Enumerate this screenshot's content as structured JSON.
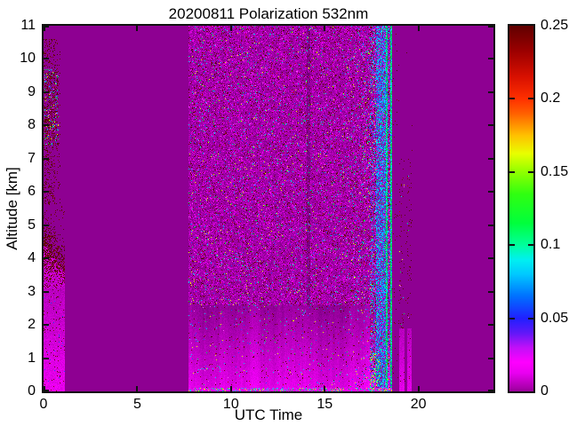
{
  "chart_data": {
    "type": "heatmap",
    "title": "20200811 Polarization 532nm",
    "xlabel": "UTC Time",
    "ylabel": "Altitude [km]",
    "xlim": [
      0,
      24
    ],
    "ylim": [
      0,
      11
    ],
    "xticks": [
      0,
      5,
      10,
      15,
      20
    ],
    "xtick_labels": [
      "0",
      "5",
      "10",
      "15",
      "20"
    ],
    "yticks": [
      0,
      1,
      2,
      3,
      4,
      5,
      6,
      7,
      8,
      9,
      10,
      11
    ],
    "ytick_labels": [
      "0",
      "1",
      "2",
      "3",
      "4",
      "5",
      "6",
      "7",
      "8",
      "9",
      "10",
      "11"
    ],
    "grid": false,
    "legend": null,
    "colorbar": {
      "position": "right",
      "range": [
        0,
        0.25
      ],
      "ticks": [
        0,
        0.05,
        0.1,
        0.15,
        0.2,
        0.25
      ],
      "tick_labels": [
        "0",
        "0.05",
        "0.1",
        "0.15",
        "0.2",
        "0.25"
      ],
      "gradient_stops": [
        [
          0.0,
          "#9B009B"
        ],
        [
          0.05,
          "#E800F0"
        ],
        [
          0.08,
          "#FF00FF"
        ],
        [
          0.12,
          "#C010F8"
        ],
        [
          0.16,
          "#6018F8"
        ],
        [
          0.2,
          "#2020FF"
        ],
        [
          0.26,
          "#0070FF"
        ],
        [
          0.32,
          "#00C8FF"
        ],
        [
          0.36,
          "#00F0F0"
        ],
        [
          0.4,
          "#00FF9C"
        ],
        [
          0.46,
          "#00FF3C"
        ],
        [
          0.54,
          "#30FF10"
        ],
        [
          0.6,
          "#90FF00"
        ],
        [
          0.65,
          "#E8FF00"
        ],
        [
          0.7,
          "#FFC000"
        ],
        [
          0.76,
          "#FF6000"
        ],
        [
          0.8,
          "#FF3000"
        ],
        [
          0.86,
          "#D81000"
        ],
        [
          0.93,
          "#9C0000"
        ],
        [
          1.0,
          "#600000"
        ]
      ]
    },
    "palette": {
      "background": "#8E0092",
      "maroon": "#6E000C",
      "cyan": "#00D2FF",
      "blue": "#2846FF",
      "green": "#00DC50",
      "yellow": "#E6FF00",
      "bright_magenta": "#FF50FF",
      "red": "#BE0000"
    },
    "regions": {
      "morning_column": {
        "hours": [
          0,
          1.12
        ],
        "bright_top_km": 4.5,
        "speckle_top_km": 10.6,
        "cluster_km": [
          7.4,
          9.7
        ],
        "cluster_hours": [
          0.05,
          0.8
        ]
      },
      "gap1_hours": [
        1.12,
        7.75
      ],
      "main_noise": {
        "hours": [
          7.75,
          17.4
        ],
        "bright_top_km": 2.6,
        "dark_streak_hours": [
          14.05,
          14.22
        ]
      },
      "dense_stripes": {
        "hours": [
          17.4,
          18.6
        ],
        "blue_band_hours": [
          17.75,
          18.25
        ],
        "green_lines_hours": [
          [
            18.27,
            18.37
          ],
          [
            18.5,
            18.6
          ]
        ],
        "yellow_patch": {
          "hours": [
            17.4,
            18.0
          ],
          "km": [
            0,
            1.2
          ]
        }
      },
      "gap2_hours": [
        18.6,
        18.95
      ],
      "faint_columns": [
        {
          "hours": [
            18.95,
            19.27
          ]
        },
        {
          "hours": [
            19.4,
            19.66
          ]
        }
      ],
      "faint_column_bright_top_km": 1.9,
      "faint_column_speckle_top_km": 7.0,
      "quiet_tail_hours": [
        19.7,
        24
      ]
    }
  }
}
